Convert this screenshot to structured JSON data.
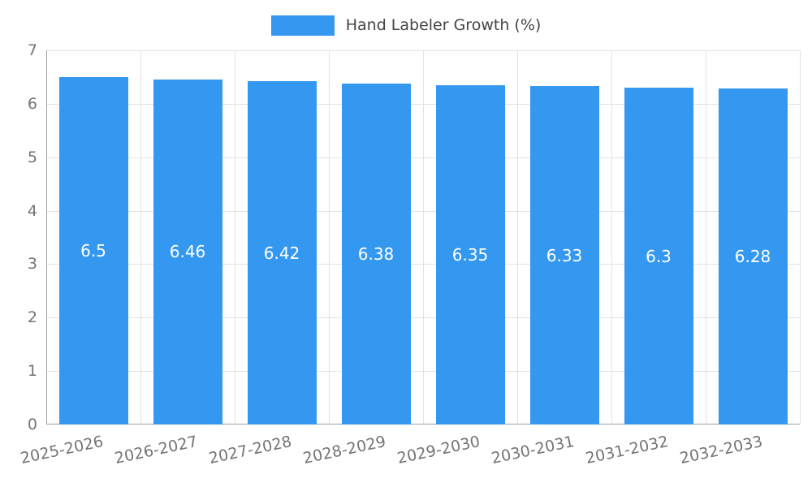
{
  "legend": {
    "label": "Hand Labeler Growth (%)"
  },
  "colors": {
    "bar": "#3598f0",
    "bar_label": "#ffffff",
    "tick_text": "#757575",
    "legend_text": "#444444",
    "grid": "#e3e3e3",
    "axis": "#9e9e9e"
  },
  "chart_data": {
    "type": "bar",
    "title": "Hand Labeler Growth (%)",
    "categories": [
      "2025-2026",
      "2026-2027",
      "2027-2028",
      "2028-2029",
      "2029-2030",
      "2030-2031",
      "2031-2032",
      "2032-2033"
    ],
    "values": [
      6.5,
      6.46,
      6.42,
      6.38,
      6.35,
      6.33,
      6.3,
      6.28
    ],
    "value_labels": [
      "6.5",
      "6.46",
      "6.42",
      "6.38",
      "6.35",
      "6.33",
      "6.3",
      "6.28"
    ],
    "xlabel": "",
    "ylabel": "",
    "ylim": [
      0,
      7
    ],
    "yticks": [
      0,
      1,
      2,
      3,
      4,
      5,
      6,
      7
    ],
    "grid": true,
    "legend_position": "top"
  }
}
